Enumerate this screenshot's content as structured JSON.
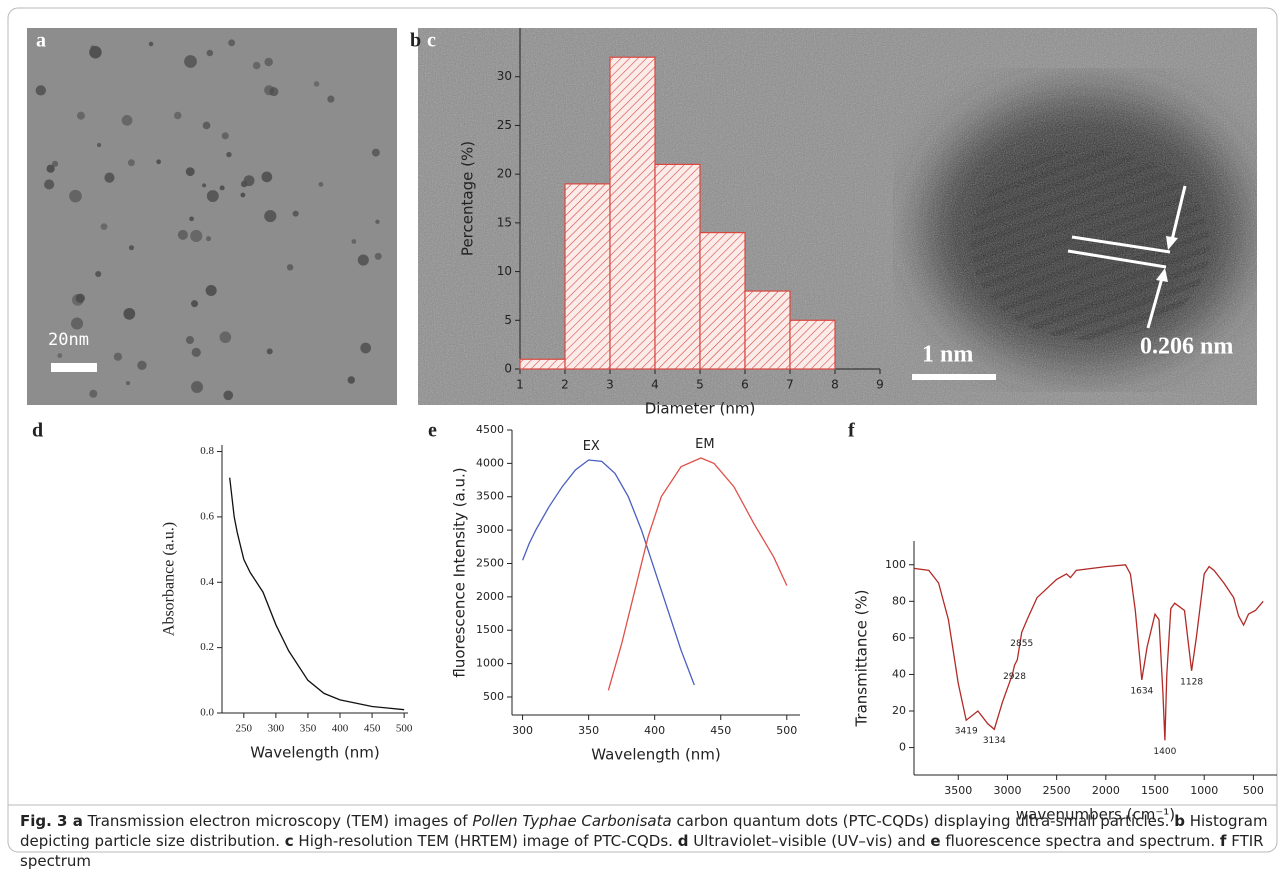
{
  "images": [
    {
      "panel": "a",
      "scale_bar": "20nm"
    },
    {
      "panel": "c",
      "scale_bar": "1 nm",
      "annotation": "0.206 nm"
    }
  ],
  "chart_data": [
    {
      "type": "histogram",
      "panel": "b",
      "xlabel": "Diameter (nm)",
      "ylabel": "Percentage (%)",
      "bins": [
        1,
        2,
        3,
        4,
        5,
        6,
        7,
        8
      ],
      "values": [
        1,
        19,
        32,
        21,
        14,
        8,
        5
      ],
      "color": "#d9473f",
      "xlim": [
        1,
        9
      ],
      "xticks": [
        1,
        2,
        3,
        4,
        5,
        6,
        7,
        8,
        9
      ],
      "ylim": [
        0,
        35
      ],
      "yticks": [
        0,
        5,
        10,
        15,
        20,
        25,
        30
      ]
    },
    {
      "type": "line",
      "panel": "d",
      "xlabel": "Wavelength (nm)",
      "ylabel": "Absorbance (a.u.)",
      "x": [
        228,
        235,
        240,
        250,
        260,
        280,
        300,
        320,
        350,
        375,
        400,
        450,
        500
      ],
      "values": [
        0.72,
        0.6,
        0.55,
        0.47,
        0.43,
        0.37,
        0.27,
        0.19,
        0.1,
        0.06,
        0.04,
        0.02,
        0.01
      ],
      "color": "#111111",
      "xlim": [
        216,
        506
      ],
      "xticks": [
        250,
        300,
        350,
        400,
        450,
        500
      ],
      "ylim": [
        0,
        0.82
      ],
      "yticks": [
        {
          "value": 0,
          "label": "0.0"
        },
        0.2,
        0.4,
        0.6,
        0.8
      ]
    },
    {
      "type": "line",
      "panel": "e",
      "xlabel": "Wavelength (nm)",
      "ylabel": "fluorescence Intensity (a.u.)",
      "series": [
        {
          "name": "EX",
          "color": "#4a5fc1",
          "x": [
            300,
            305,
            310,
            320,
            330,
            340,
            350,
            360,
            370,
            380,
            390,
            400,
            410,
            420,
            430
          ],
          "values": [
            2550,
            2800,
            3000,
            3350,
            3650,
            3900,
            4050,
            4030,
            3850,
            3500,
            3000,
            2400,
            1800,
            1200,
            680
          ]
        },
        {
          "name": "EM",
          "color": "#e0504a",
          "x": [
            365,
            375,
            385,
            395,
            405,
            420,
            435,
            445,
            460,
            475,
            490,
            500
          ],
          "values": [
            600,
            1300,
            2100,
            2900,
            3500,
            3950,
            4080,
            4000,
            3650,
            3100,
            2600,
            2170
          ]
        }
      ],
      "annotations": [
        {
          "text": "EX",
          "x": 352,
          "y": 4250
        },
        {
          "text": "EM",
          "x": 438,
          "y": 4280
        }
      ],
      "xlim": [
        292,
        510
      ],
      "xticks": [
        300,
        350,
        400,
        450,
        500
      ],
      "ylim": [
        230,
        4500
      ],
      "yticks": [
        500,
        1000,
        1500,
        2000,
        2500,
        3000,
        3500,
        4000,
        4500
      ]
    },
    {
      "type": "line",
      "panel": "f",
      "xlabel": "wavenumbers (cm⁻¹)",
      "ylabel": "Transmittance (%)",
      "x": [
        3950,
        3800,
        3700,
        3600,
        3500,
        3419,
        3300,
        3200,
        3134,
        3050,
        2950,
        2928,
        2900,
        2855,
        2800,
        2700,
        2500,
        2400,
        2360,
        2300,
        2000,
        1800,
        1750,
        1700,
        1634,
        1580,
        1500,
        1460,
        1420,
        1400,
        1380,
        1340,
        1300,
        1200,
        1128,
        1080,
        1000,
        950,
        900,
        800,
        700,
        650,
        600,
        550,
        480,
        400
      ],
      "values": [
        98,
        97,
        90,
        70,
        35,
        15,
        20,
        13,
        10,
        25,
        40,
        45,
        48,
        63,
        70,
        82,
        92,
        95,
        93,
        97,
        99,
        100,
        95,
        75,
        37,
        55,
        73,
        70,
        30,
        4,
        40,
        76,
        79,
        75,
        42,
        60,
        95,
        99,
        97,
        90,
        82,
        72,
        67,
        73,
        75,
        80
      ],
      "color": "#b22a26",
      "annotations": [
        {
          "text": "3419",
          "x": 3419,
          "y": 15
        },
        {
          "text": "3134",
          "x": 3134,
          "y": 10
        },
        {
          "text": "2928",
          "x": 2928,
          "y": 45
        },
        {
          "text": "2855",
          "x": 2855,
          "y": 63
        },
        {
          "text": "1634",
          "x": 1634,
          "y": 37
        },
        {
          "text": "1400",
          "x": 1400,
          "y": 4
        },
        {
          "text": "1128",
          "x": 1128,
          "y": 42
        }
      ],
      "xlim": [
        3950,
        260
      ],
      "xticks": [
        3500,
        3000,
        2500,
        2000,
        1500,
        1000,
        500
      ],
      "ylim": [
        -15,
        113
      ],
      "yticks": [
        0,
        20,
        40,
        60,
        80,
        100
      ]
    }
  ],
  "caption": [
    {
      "text": "Fig. 3",
      "style": "bold"
    },
    {
      "text": " a",
      "style": "bold"
    },
    {
      "text": " Transmission electron microscopy (TEM) images of ",
      "style": "normal"
    },
    {
      "text": "Pollen Typhae Carbonisata",
      "style": "italic"
    },
    {
      "text": " carbon quantum dots (PTC-CQDs) displaying ultra-small particles. ",
      "style": "normal"
    },
    {
      "text": "b",
      "style": "bold"
    },
    {
      "text": " Histogram depicting particle size distribution. ",
      "style": "normal"
    },
    {
      "text": "c",
      "style": "bold"
    },
    {
      "text": " High-resolution TEM (HRTEM) image of PTC-CQDs. ",
      "style": "normal"
    },
    {
      "text": "d",
      "style": "bold"
    },
    {
      "text": " Ultraviolet–visible (UV–vis) and ",
      "style": "normal"
    },
    {
      "text": "e",
      "style": "bold"
    },
    {
      "text": " fluorescence spectra and spectrum. ",
      "style": "normal"
    },
    {
      "text": "f",
      "style": "bold"
    },
    {
      "text": " FTIR spectrum",
      "style": "normal"
    }
  ]
}
